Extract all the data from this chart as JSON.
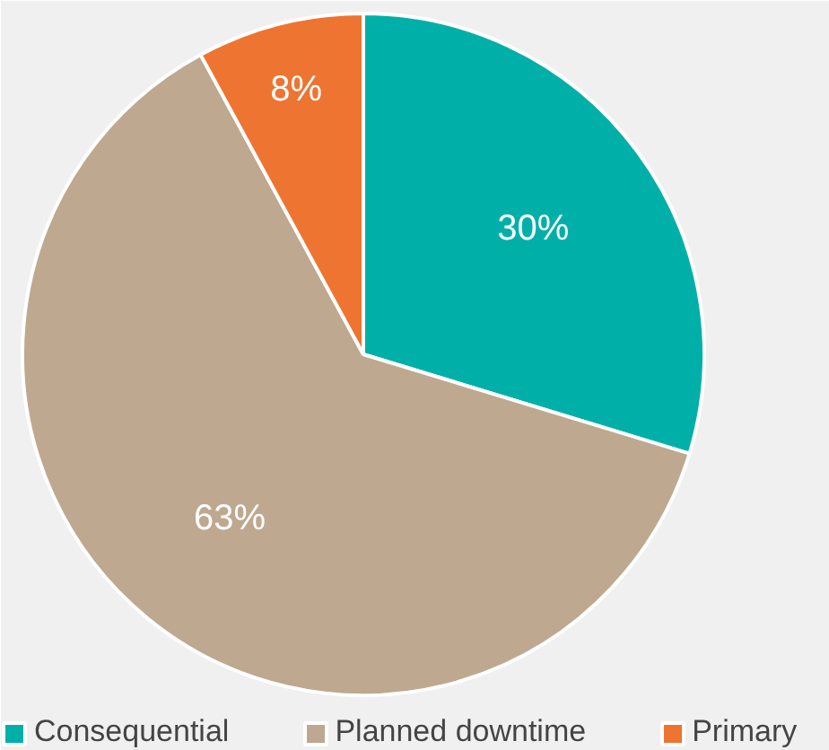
{
  "chart_data": {
    "type": "pie",
    "categories": [
      "Consequential",
      "Planned downtime",
      "Primary"
    ],
    "values": [
      30,
      63,
      8
    ],
    "colors": [
      "#00b0a8",
      "#bea88f",
      "#ee7431"
    ],
    "value_labels": [
      "30%",
      "63%",
      "8%"
    ],
    "legend": "bottom"
  }
}
